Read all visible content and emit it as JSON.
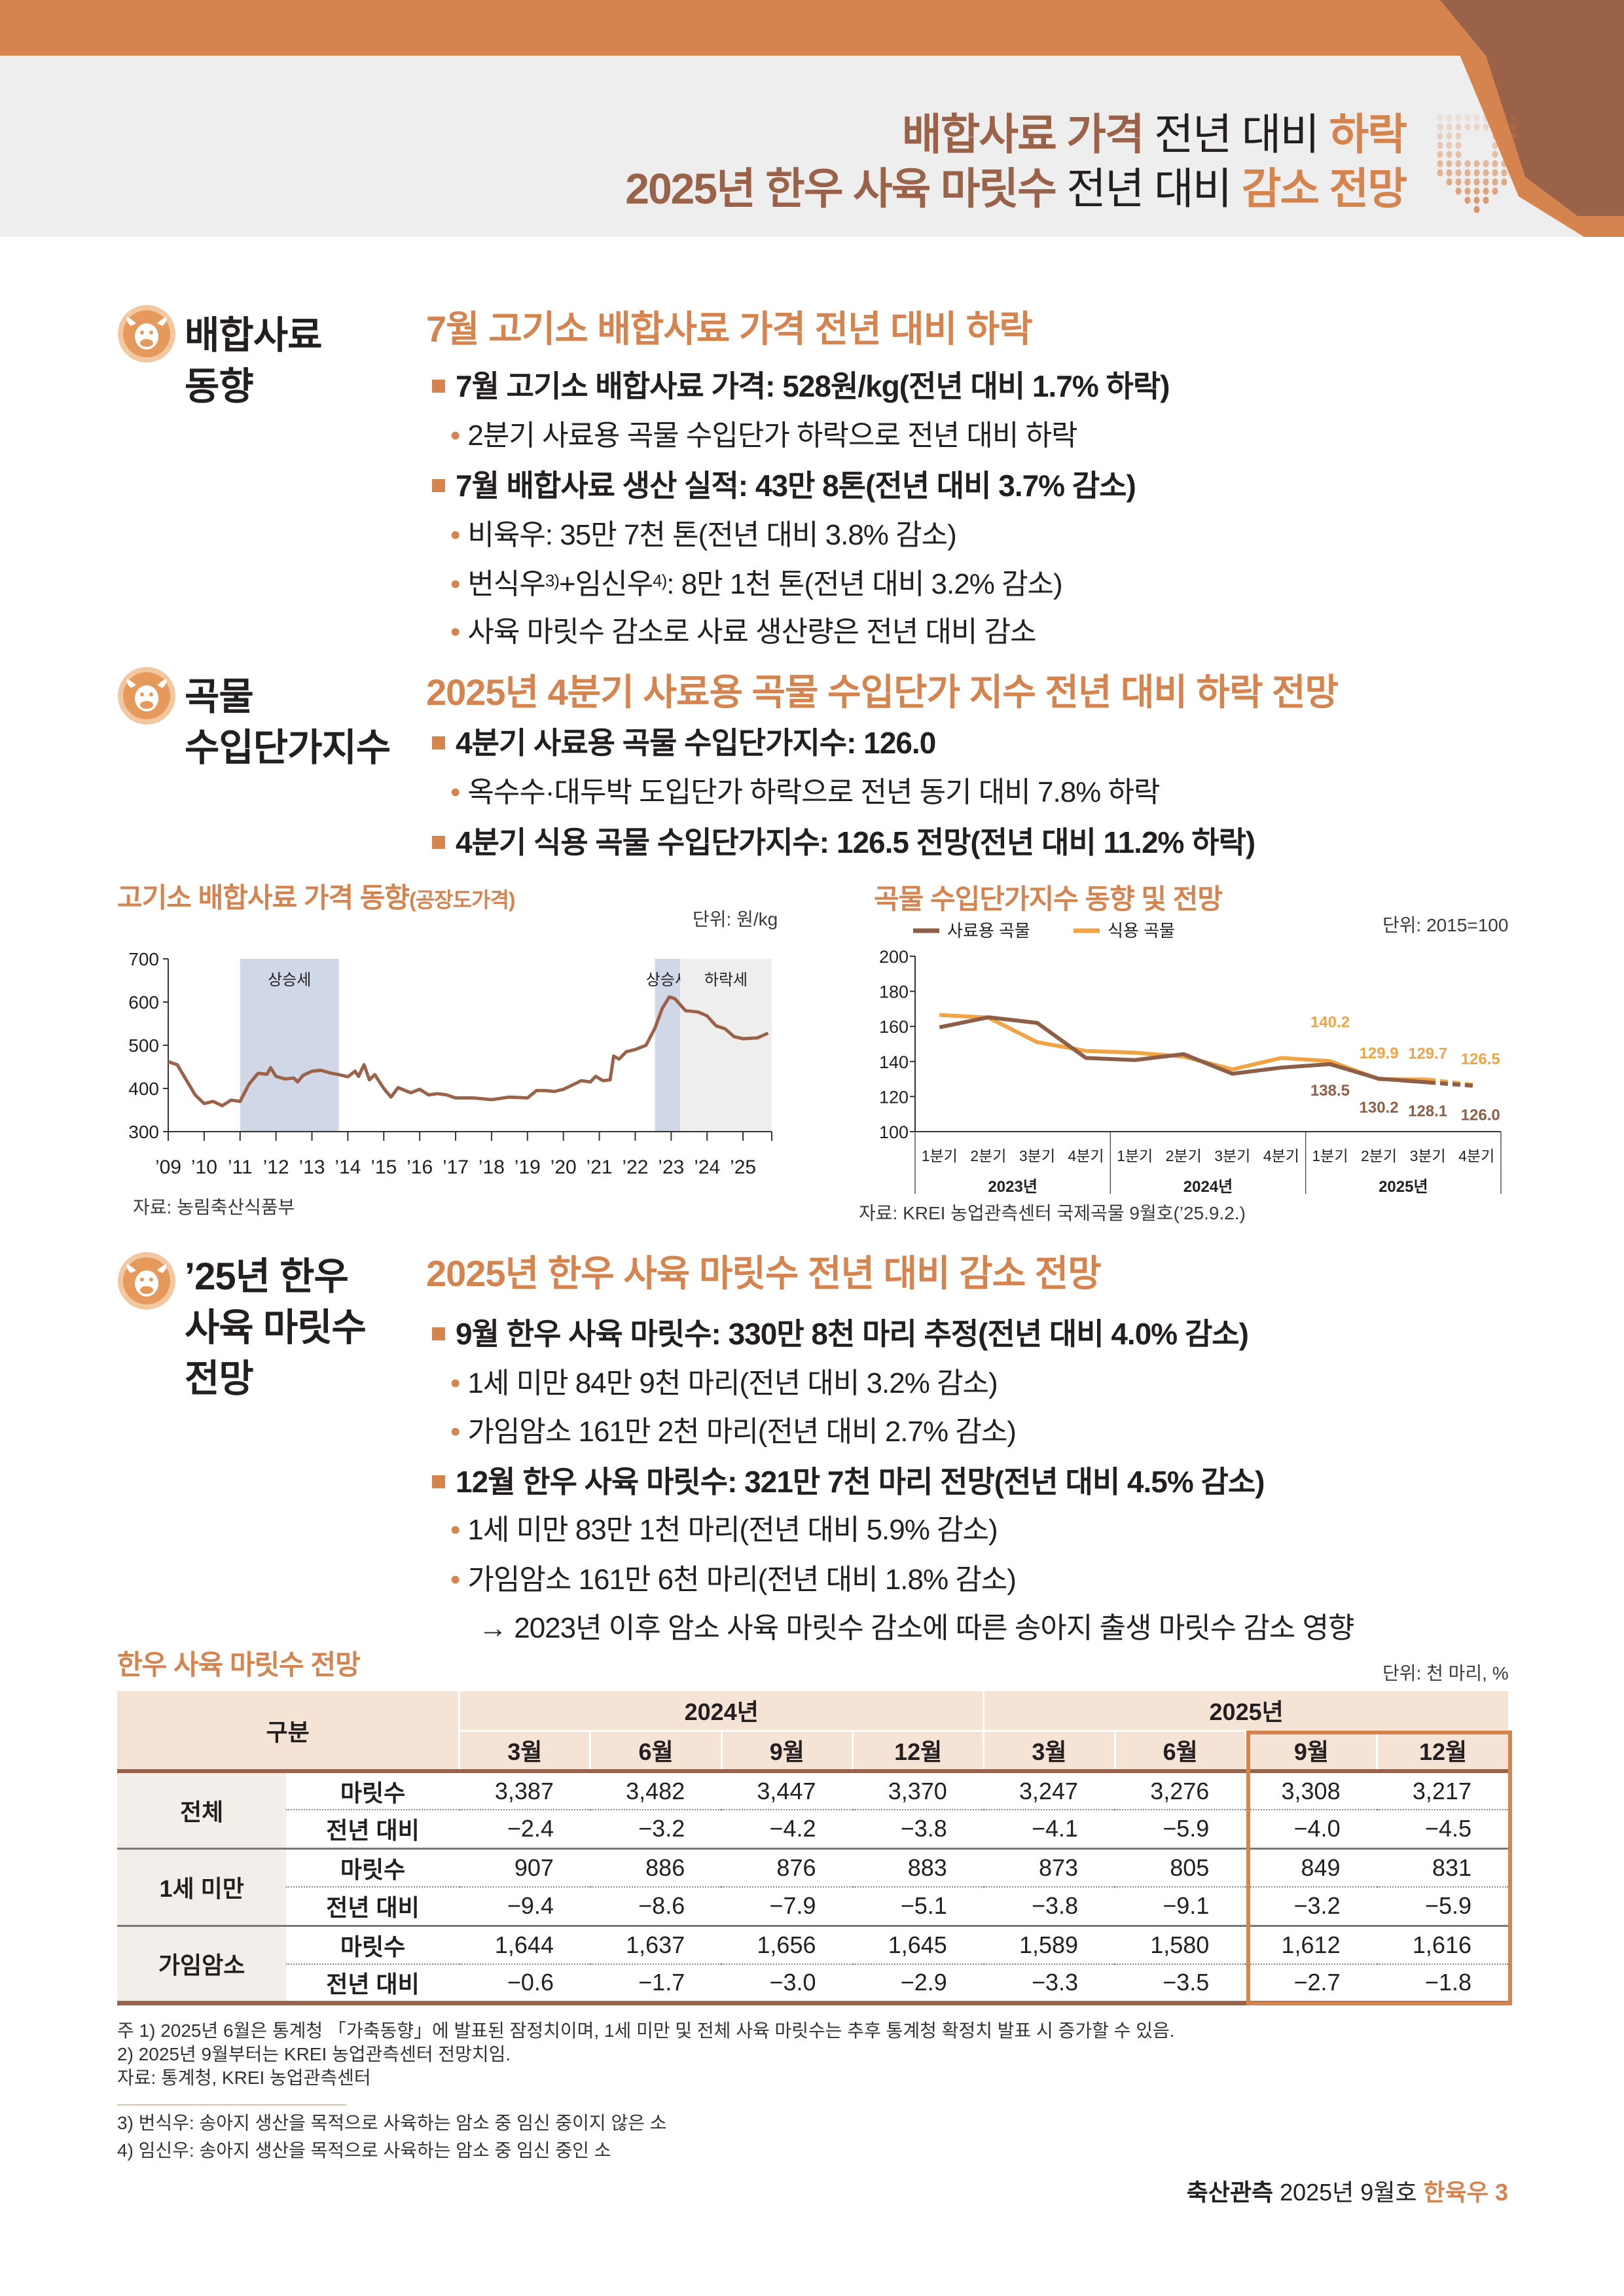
{
  "header": {
    "line1": [
      {
        "t": "배합사료 가격",
        "c": "b"
      },
      {
        "t": " 전년 대비 ",
        "c": "k"
      },
      {
        "t": "하락",
        "c": "o"
      }
    ],
    "line2": [
      {
        "t": "2025년 한우 사육 마릿수",
        "c": "b"
      },
      {
        "t": " 전년 대비 ",
        "c": "k"
      },
      {
        "t": "감소 전망",
        "c": "o"
      }
    ]
  },
  "colors": {
    "accent": "#D6844F",
    "brown": "#9A6249",
    "feed_line": "#8F5E47",
    "food_line": "#F2A444"
  },
  "sections": [
    {
      "icon": "cow-face-icon",
      "label": [
        "배합사료",
        "동향"
      ],
      "heading": "7월 고기소 배합사료 가격 전년 대비 하락",
      "lines": [
        {
          "lvl": 1,
          "text": "7월 고기소 배합사료 가격: 528원/kg(전년 대비 1.7% 하락)"
        },
        {
          "lvl": 2,
          "text": "2분기 사료용 곡물 수입단가 하락으로 전년 대비 하락"
        },
        {
          "lvl": 1,
          "text": "7월 배합사료 생산 실적: 43만 8톤(전년 대비 3.7% 감소)"
        },
        {
          "lvl": 2,
          "text": "비육우: 35만 7천 톤(전년 대비 3.8% 감소)"
        },
        {
          "lvl": 2,
          "text": "번식우",
          "sup1": "3)",
          "mid": "+임신우",
          "sup2": "4)",
          "rest": ": 8만 1천 톤(전년 대비 3.2% 감소)"
        },
        {
          "lvl": 2,
          "text": "사육 마릿수 감소로 사료 생산량은 전년 대비 감소"
        }
      ]
    },
    {
      "icon": "cow-face-icon",
      "label": [
        "곡물",
        "수입단가지수"
      ],
      "heading": "2025년 4분기 사료용 곡물 수입단가 지수 전년 대비 하락 전망",
      "lines": [
        {
          "lvl": 1,
          "text": "4분기 사료용 곡물 수입단가지수: 126.0"
        },
        {
          "lvl": 2,
          "text": "옥수수·대두박 도입단가 하락으로 전년 동기 대비 7.8% 하락"
        },
        {
          "lvl": 1,
          "text": "4분기 식용 곡물 수입단가지수: 126.5 전망(전년 대비 11.2% 하락)"
        }
      ]
    },
    {
      "icon": "cow-face-icon",
      "label": [
        "’25년 한우",
        "사육 마릿수",
        "전망"
      ],
      "heading": "2025년 한우 사육 마릿수 전년 대비 감소 전망",
      "lines": [
        {
          "lvl": 1,
          "text": "9월 한우 사육 마릿수: 330만 8천 마리 추정(전년 대비 4.0% 감소)"
        },
        {
          "lvl": 2,
          "text": "1세 미만 84만 9천 마리(전년 대비 3.2% 감소)"
        },
        {
          "lvl": 2,
          "text": "가임암소 161만 2천 마리(전년 대비 2.7% 감소)"
        },
        {
          "lvl": 1,
          "text": "12월 한우 사육 마릿수: 321만 7천 마리 전망(전년 대비 4.5% 감소)"
        },
        {
          "lvl": 2,
          "text": "1세 미만 83만 1천 마리(전년 대비 5.9% 감소)"
        },
        {
          "lvl": 2,
          "text": "가임암소 161만 6천 마리(전년 대비 1.8% 감소)"
        },
        {
          "lvl": 3,
          "text": "→ 2023년 이후 암소 사육 마릿수 감소에 따른 송아지 출생 마릿수 감소 영향"
        }
      ]
    }
  ],
  "chart_data": [
    {
      "type": "line",
      "title": "고기소 배합사료 가격 동향",
      "title_suffix": "(공장도가격)",
      "unit": "단위: 원/kg",
      "source": "자료: 농림축산식품부",
      "ylim": [
        300,
        700
      ],
      "yticks": [
        300,
        400,
        500,
        600,
        700
      ],
      "xticks": [
        "’09",
        "’10",
        "’11",
        "’12",
        "’13",
        "’14",
        "’15",
        "’16",
        "’17",
        "’18",
        "’19",
        "’20",
        "’21",
        "’22",
        "’23",
        "’24",
        "’25"
      ],
      "xrange": [
        2009,
        2025.8
      ],
      "shaded": [
        {
          "from": 2011,
          "to": 2013.75,
          "label": "상승세",
          "kind": "up"
        },
        {
          "from": 2022.55,
          "to": 2023.25,
          "label": "상승세",
          "kind": "up"
        },
        {
          "from": 2023.25,
          "to": 2025.8,
          "label": "하락세",
          "kind": "down"
        }
      ],
      "points": [
        [
          2009,
          462
        ],
        [
          2009.25,
          455
        ],
        [
          2009.5,
          420
        ],
        [
          2009.75,
          385
        ],
        [
          2010,
          365
        ],
        [
          2010.25,
          370
        ],
        [
          2010.5,
          360
        ],
        [
          2010.75,
          373
        ],
        [
          2011,
          370
        ],
        [
          2011.25,
          410
        ],
        [
          2011.5,
          435
        ],
        [
          2011.75,
          433
        ],
        [
          2011.85,
          448
        ],
        [
          2012,
          428
        ],
        [
          2012.25,
          422
        ],
        [
          2012.5,
          424
        ],
        [
          2012.6,
          415
        ],
        [
          2012.75,
          430
        ],
        [
          2013,
          440
        ],
        [
          2013.25,
          442
        ],
        [
          2013.5,
          436
        ],
        [
          2013.75,
          432
        ],
        [
          2014,
          427
        ],
        [
          2014.2,
          440
        ],
        [
          2014.3,
          428
        ],
        [
          2014.45,
          455
        ],
        [
          2014.6,
          420
        ],
        [
          2014.75,
          432
        ],
        [
          2015,
          400
        ],
        [
          2015.2,
          380
        ],
        [
          2015.4,
          402
        ],
        [
          2015.6,
          395
        ],
        [
          2015.75,
          390
        ],
        [
          2016,
          398
        ],
        [
          2016.25,
          385
        ],
        [
          2016.5,
          388
        ],
        [
          2016.75,
          385
        ],
        [
          2017,
          378
        ],
        [
          2017.5,
          378
        ],
        [
          2018,
          374
        ],
        [
          2018.5,
          380
        ],
        [
          2019,
          378
        ],
        [
          2019.25,
          395
        ],
        [
          2019.5,
          395
        ],
        [
          2019.75,
          393
        ],
        [
          2020,
          398
        ],
        [
          2020.5,
          418
        ],
        [
          2020.75,
          415
        ],
        [
          2020.9,
          428
        ],
        [
          2021.1,
          418
        ],
        [
          2021.3,
          420
        ],
        [
          2021.4,
          475
        ],
        [
          2021.55,
          468
        ],
        [
          2021.75,
          485
        ],
        [
          2022,
          490
        ],
        [
          2022.3,
          500
        ],
        [
          2022.55,
          540
        ],
        [
          2022.75,
          585
        ],
        [
          2022.95,
          612
        ],
        [
          2023.1,
          608
        ],
        [
          2023.4,
          580
        ],
        [
          2023.75,
          577
        ],
        [
          2024,
          568
        ],
        [
          2024.25,
          545
        ],
        [
          2024.5,
          538
        ],
        [
          2024.75,
          520
        ],
        [
          2025,
          515
        ],
        [
          2025.4,
          517
        ],
        [
          2025.7,
          528
        ]
      ]
    },
    {
      "type": "line",
      "title": "곡물 수입단가지수 동향 및 전망",
      "unit": "단위: 2015=100",
      "source": "자료: KREI 농업관측센터 국제곡물 9월호(’25.9.2.)",
      "ylim": [
        100,
        200
      ],
      "yticks": [
        100,
        120,
        140,
        160,
        180,
        200
      ],
      "categories": [
        "1분기",
        "2분기",
        "3분기",
        "4분기",
        "1분기",
        "2분기",
        "3분기",
        "4분기",
        "1분기",
        "2분기",
        "3분기",
        "4분기"
      ],
      "groups": [
        "2023년",
        "2024년",
        "2025년"
      ],
      "forecast_from_index": 10,
      "series": [
        {
          "name": "사료용 곡물",
          "color": "#8F5E47",
          "values": [
            159.5,
            165.2,
            162.0,
            142.0,
            140.8,
            144.2,
            133.0,
            136.5,
            138.5,
            130.2,
            128.1,
            126.0
          ],
          "labels": {
            "8": "138.5",
            "9": "130.2",
            "10": "128.1",
            "11": "126.0"
          }
        },
        {
          "name": "식용 곡물",
          "color": "#F2A444",
          "values": [
            166.5,
            165.0,
            151.0,
            146.0,
            145.0,
            142.8,
            135.5,
            142.0,
            140.2,
            129.9,
            129.7,
            126.5
          ],
          "labels": {
            "8": "140.2",
            "9": "129.9",
            "10": "129.7",
            "11": "126.5"
          }
        }
      ]
    }
  ],
  "table": {
    "title": "한우 사육 마릿수 전망",
    "unit": "단위: 천 마리, %",
    "corner": "구분",
    "years": [
      "2024년",
      "2025년"
    ],
    "months": [
      "3월",
      "6월",
      "9월",
      "12월",
      "3월",
      "6월",
      "9월",
      "12월"
    ],
    "groups": [
      {
        "name": "전체",
        "rows": [
          {
            "label": "마릿수",
            "values": [
              "3,387",
              "3,482",
              "3,447",
              "3,370",
              "3,247",
              "3,276",
              "3,308",
              "3,217"
            ]
          },
          {
            "label": "전년 대비",
            "values": [
              "−2.4",
              "−3.2",
              "−4.2",
              "−3.8",
              "−4.1",
              "−5.9",
              "−4.0",
              "−4.5"
            ]
          }
        ]
      },
      {
        "name": "1세 미만",
        "rows": [
          {
            "label": "마릿수",
            "values": [
              "907",
              "886",
              "876",
              "883",
              "873",
              "805",
              "849",
              "831"
            ]
          },
          {
            "label": "전년 대비",
            "values": [
              "−9.4",
              "−8.6",
              "−7.9",
              "−5.1",
              "−3.8",
              "−9.1",
              "−3.2",
              "−5.9"
            ]
          }
        ]
      },
      {
        "name": "가임암소",
        "rows": [
          {
            "label": "마릿수",
            "values": [
              "1,644",
              "1,637",
              "1,656",
              "1,645",
              "1,589",
              "1,580",
              "1,612",
              "1,616"
            ]
          },
          {
            "label": "전년 대비",
            "values": [
              "−0.6",
              "−1.7",
              "−3.0",
              "−2.9",
              "−3.3",
              "−3.5",
              "−2.7",
              "−1.8"
            ]
          }
        ]
      }
    ],
    "notes": [
      "주   1) 2025년 6월은 통계청 「가축동향」에 발표된 잠정치이며, 1세 미만 및 전체 사육 마릿수는 추후 통계청 확정치 발표 시 증가할 수 있음.",
      "       2) 2025년 9월부터는 KREI 농업관측센터 전망치임.",
      "자료: 통계청, KREI 농업관측센터"
    ]
  },
  "footnotes": [
    "3) 번식우: 송아지 생산을 목적으로 사육하는 암소 중 임신 중이지 않은 소",
    "4) 임신우: 송아지 생산을 목적으로 사육하는 암소 중 임신 중인 소"
  ],
  "footer": {
    "pub": "축산관측",
    "issue": " 2025년 9월호 ",
    "topic": "한육우",
    "page": "3"
  }
}
